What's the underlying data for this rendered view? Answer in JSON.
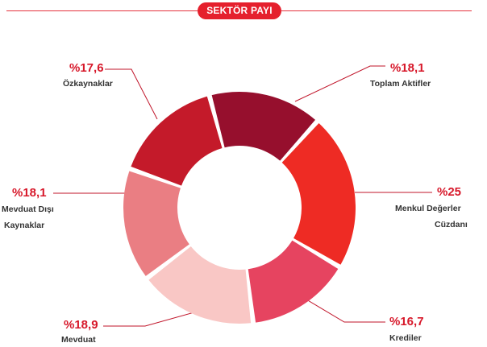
{
  "header": {
    "title": "SEKTÖR PAYI"
  },
  "colors": {
    "accent": "#e5202d",
    "value_text": "#d7182a",
    "label_text": "#333333",
    "leader": "#c0152a"
  },
  "chart_data": {
    "type": "pie",
    "style": "donut",
    "title": "SEKTÖR PAYI",
    "values_format": "percent",
    "slices": [
      {
        "label": "Toplam Aktifler",
        "value": 18.1,
        "value_text": "%18,1",
        "color": "#960f2d"
      },
      {
        "label": "Menkul Değerler Cüzdanı",
        "label_lines": [
          "Menkul Değerler",
          "Cüzdanı"
        ],
        "value": 25,
        "value_text": "%25",
        "color": "#ee2b24"
      },
      {
        "label": "Krediler",
        "value": 16.7,
        "value_text": "%16,7",
        "color": "#e64460"
      },
      {
        "label": "Mevduat",
        "value": 18.9,
        "value_text": "%18,9",
        "color": "#f9c7c5"
      },
      {
        "label": "Mevduat Dışı Kaynaklar",
        "label_lines": [
          "Mevduat Dışı",
          "Kaynaklar"
        ],
        "value": 18.1,
        "value_text": "%18,1",
        "color": "#ea7e83"
      },
      {
        "label": "Özkaynaklar",
        "value": 17.6,
        "value_text": "%17,6",
        "color": "#c41a2a"
      }
    ]
  }
}
